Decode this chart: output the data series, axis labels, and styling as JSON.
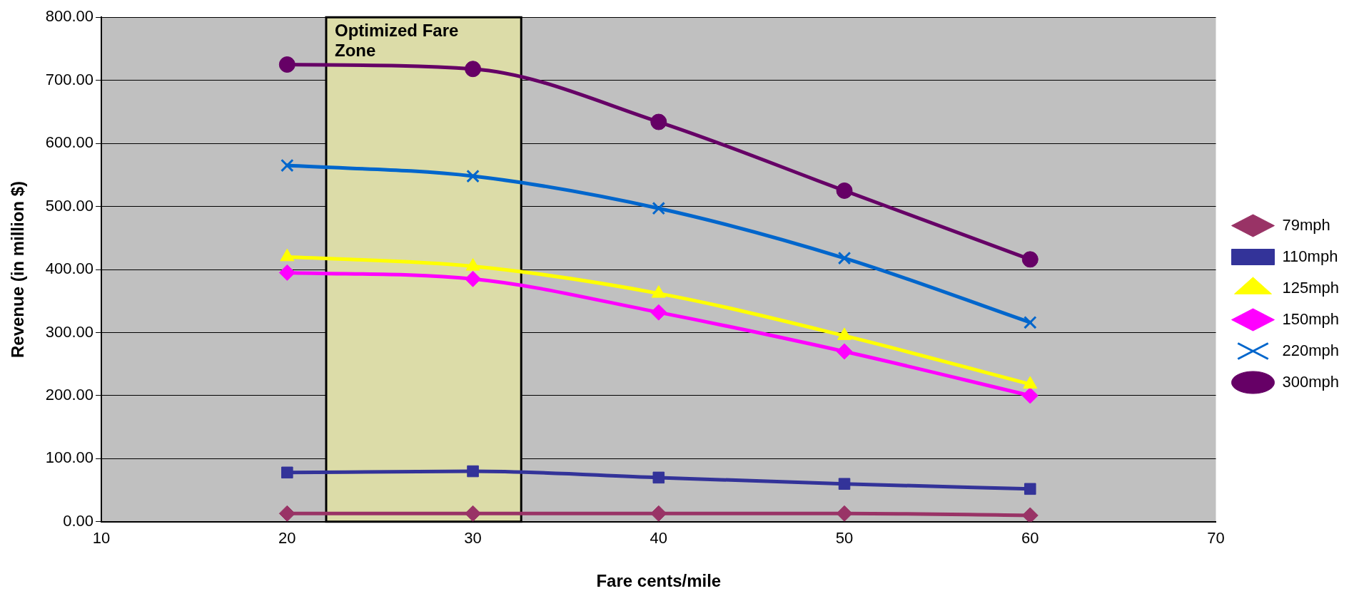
{
  "chart_data": {
    "type": "line",
    "xlabel": "Fare cents/mile",
    "ylabel": "Revenue (in million $)",
    "x": [
      20,
      30,
      40,
      50,
      60
    ],
    "xlim": [
      10,
      70
    ],
    "xticks": [
      10,
      20,
      30,
      40,
      50,
      60,
      70
    ],
    "ylim": [
      0,
      800
    ],
    "yticks": [
      {
        "value": 0,
        "label": "0.00"
      },
      {
        "value": 100,
        "label": "100.00"
      },
      {
        "value": 200,
        "label": "200.00"
      },
      {
        "value": 300,
        "label": "300.00"
      },
      {
        "value": 400,
        "label": "400.00"
      },
      {
        "value": 500,
        "label": "500.00"
      },
      {
        "value": 600,
        "label": "600.00"
      },
      {
        "value": 700,
        "label": "700.00"
      },
      {
        "value": 800,
        "label": "800.00"
      }
    ],
    "grid": "y",
    "legend": "right",
    "line_style": "solid",
    "bands": [
      {
        "axis": "x",
        "from": 22.1,
        "to": 32.6,
        "label": "Optimized Fare Zone",
        "color": "#dcdca8"
      }
    ],
    "series": [
      {
        "name": "79mph",
        "color": "#993366",
        "marker": "diamond",
        "values": [
          13,
          13,
          13,
          13,
          10
        ]
      },
      {
        "name": "110mph",
        "color": "#333399",
        "marker": "square",
        "values": [
          78,
          80,
          70,
          60,
          52
        ]
      },
      {
        "name": "125mph",
        "color": "#ffff00",
        "marker": "triangle",
        "values": [
          420,
          405,
          362,
          295,
          218
        ]
      },
      {
        "name": "150mph",
        "color": "#ff00ff",
        "marker": "diamond",
        "values": [
          395,
          385,
          332,
          270,
          200
        ]
      },
      {
        "name": "220mph",
        "color": "#0066cc",
        "marker": "cross",
        "values": [
          565,
          548,
          497,
          418,
          316
        ]
      },
      {
        "name": "300mph",
        "color": "#660066",
        "marker": "circle",
        "values": [
          725,
          718,
          634,
          525,
          416
        ]
      }
    ]
  }
}
